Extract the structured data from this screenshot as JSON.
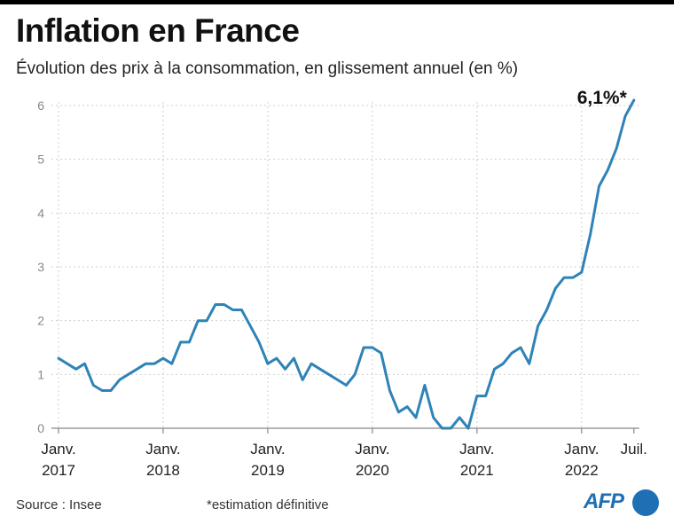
{
  "header": {
    "title": "Inflation en France",
    "subtitle": "Évolution des prix à la consommation, en glissement annuel (en %)"
  },
  "footer": {
    "source": "Source : Insee",
    "footnote": "*estimation définitive",
    "logo": "AFP"
  },
  "colors": {
    "line": "#2e83b7",
    "grid": "#cfcfcf",
    "axis": "#888888",
    "tick_text": "#888888"
  },
  "chart_data": {
    "type": "line",
    "title": "Inflation en France",
    "ylabel": "en %",
    "xlabel": "",
    "ylim": [
      0,
      6
    ],
    "yticks": [
      0,
      1,
      2,
      3,
      4,
      5,
      6
    ],
    "grid": true,
    "x_start": "2017-01",
    "x_end": "2022-07",
    "x_tick_labels": [
      {
        "month_index": 0,
        "line1": "Janv.",
        "line2": "2017"
      },
      {
        "month_index": 12,
        "line1": "Janv.",
        "line2": "2018"
      },
      {
        "month_index": 24,
        "line1": "Janv.",
        "line2": "2019"
      },
      {
        "month_index": 36,
        "line1": "Janv.",
        "line2": "2020"
      },
      {
        "month_index": 48,
        "line1": "Janv.",
        "line2": "2021"
      },
      {
        "month_index": 60,
        "line1": "Janv.",
        "line2": "2022"
      },
      {
        "month_index": 66,
        "line1": "Juil.",
        "line2": ""
      }
    ],
    "series": [
      {
        "name": "Inflation (glissement annuel, %)",
        "values": [
          1.3,
          1.2,
          1.1,
          1.2,
          0.8,
          0.7,
          0.7,
          0.9,
          1.0,
          1.1,
          1.2,
          1.2,
          1.3,
          1.2,
          1.6,
          1.6,
          2.0,
          2.0,
          2.3,
          2.3,
          2.2,
          2.2,
          1.9,
          1.6,
          1.2,
          1.3,
          1.1,
          1.3,
          0.9,
          1.2,
          1.1,
          1.0,
          0.9,
          0.8,
          1.0,
          1.5,
          1.5,
          1.4,
          0.7,
          0.3,
          0.4,
          0.2,
          0.8,
          0.2,
          0.0,
          0.0,
          0.2,
          0.0,
          0.6,
          0.6,
          1.1,
          1.2,
          1.4,
          1.5,
          1.2,
          1.9,
          2.2,
          2.6,
          2.8,
          2.8,
          2.9,
          3.6,
          4.5,
          4.8,
          5.2,
          5.8,
          6.1
        ]
      }
    ],
    "annotation": {
      "month_index": 66,
      "text": "6,1%*"
    }
  }
}
